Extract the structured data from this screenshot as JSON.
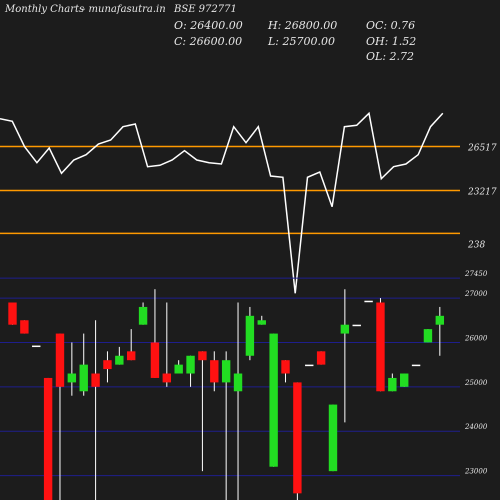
{
  "header": {
    "app": "Monthly Charts",
    "site": "- munafasutra.in",
    "symbol": "BSE 972771",
    "open": "O: 26400.00",
    "close": "C: 26600.00",
    "high": "H: 26800.00",
    "low": "L: 25700.00",
    "oc": "OC: 0.76",
    "oh": "OH: 1.52",
    "ol": "OL: 2.72"
  },
  "colors": {
    "background": "#1c1c1c",
    "up": "#22dd22",
    "down": "#ff1111",
    "wick": "#ffffff",
    "line": "#ffffff",
    "ref": "#ff9900",
    "grid": "#1e1e8c",
    "text": "#e6e6e6"
  },
  "chart_data": [
    {
      "type": "line",
      "indicator_labels": [
        "26517",
        "23217",
        "238"
      ],
      "reference_lines": [
        26517,
        23217,
        20000
      ],
      "ylim": [
        15000,
        30000
      ],
      "values": [
        28600,
        28400,
        26500,
        25300,
        26400,
        24500,
        25500,
        25900,
        26700,
        27000,
        28000,
        28200,
        25000,
        25100,
        25500,
        26200,
        25500,
        25300,
        25200,
        28000,
        26800,
        28000,
        24300,
        24200,
        15500,
        24200,
        24600,
        22000,
        28000,
        28100,
        29000,
        24100,
        25000,
        25200,
        25900,
        28000,
        29000
      ]
    },
    {
      "type": "candlestick",
      "y_tick_labels": [
        "27450",
        "27000",
        "26000",
        "25000",
        "24000",
        "23000"
      ],
      "y_ticks": [
        27450,
        27000,
        26000,
        25000,
        24000,
        23000
      ],
      "ylim": [
        22450,
        27700
      ],
      "candles": [
        {
          "open": 26900,
          "close": 26400,
          "high": 26900,
          "low": 26400
        },
        {
          "open": 26500,
          "close": 26200,
          "high": 26500,
          "low": 26200
        },
        {
          "open": 25930,
          "close": 25930,
          "high": 25930,
          "low": 25930
        },
        {
          "open": 25200,
          "close": 22400,
          "high": 25200,
          "low": 22400
        },
        {
          "open": 26200,
          "close": 25000,
          "high": 26200,
          "low": 22400
        },
        {
          "open": 25100,
          "close": 25300,
          "high": 26000,
          "low": 24800
        },
        {
          "open": 24900,
          "close": 25500,
          "high": 26200,
          "low": 24800
        },
        {
          "open": 25300,
          "close": 25000,
          "high": 26500,
          "low": 22400
        },
        {
          "open": 25600,
          "close": 25400,
          "high": 25800,
          "low": 25100
        },
        {
          "open": 25500,
          "close": 25700,
          "high": 25900,
          "low": 25500
        },
        {
          "open": 25800,
          "close": 25600,
          "high": 26300,
          "low": 25600
        },
        {
          "open": 26400,
          "close": 26800,
          "high": 26900,
          "low": 26400
        },
        {
          "open": 26000,
          "close": 25200,
          "high": 27200,
          "low": 25200
        },
        {
          "open": 25300,
          "close": 25100,
          "high": 26900,
          "low": 25000
        },
        {
          "open": 25300,
          "close": 25500,
          "high": 25600,
          "low": 25300
        },
        {
          "open": 25300,
          "close": 25700,
          "high": 25700,
          "low": 25000
        },
        {
          "open": 25800,
          "close": 25600,
          "high": 25800,
          "low": 23100
        },
        {
          "open": 25600,
          "close": 25100,
          "high": 25800,
          "low": 24900
        },
        {
          "open": 25100,
          "close": 25600,
          "high": 25800,
          "low": 22400
        },
        {
          "open": 24900,
          "close": 25300,
          "high": 26900,
          "low": 22400
        },
        {
          "open": 25700,
          "close": 26600,
          "high": 26800,
          "low": 25600
        },
        {
          "open": 26400,
          "close": 26500,
          "high": 26600,
          "low": 26400
        },
        {
          "open": 23200,
          "close": 26200,
          "high": 26200,
          "low": 23200
        },
        {
          "open": 25600,
          "close": 25300,
          "high": 25600,
          "low": 25100
        },
        {
          "open": 25100,
          "close": 22600,
          "high": 25100,
          "low": 22450
        },
        {
          "open": 25500,
          "close": 25500,
          "high": 25500,
          "low": 25500
        },
        {
          "open": 25800,
          "close": 25500,
          "high": 25800,
          "low": 25500
        },
        {
          "open": 23100,
          "close": 24600,
          "high": 24600,
          "low": 23100
        },
        {
          "open": 26200,
          "close": 26400,
          "high": 27200,
          "low": 24200
        },
        {
          "open": 26400,
          "close": 26400,
          "high": 26400,
          "low": 26400
        },
        {
          "open": 26940,
          "close": 26940,
          "high": 26940,
          "low": 26940
        },
        {
          "open": 26900,
          "close": 24900,
          "high": 27000,
          "low": 24900
        },
        {
          "open": 24900,
          "close": 25200,
          "high": 25300,
          "low": 24900
        },
        {
          "open": 25000,
          "close": 25300,
          "high": 25300,
          "low": 25000
        },
        {
          "open": 25500,
          "close": 25500,
          "high": 25500,
          "low": 25500
        },
        {
          "open": 26000,
          "close": 26300,
          "high": 26300,
          "low": 26000
        },
        {
          "open": 26400,
          "close": 26600,
          "high": 26800,
          "low": 25700
        }
      ]
    }
  ]
}
